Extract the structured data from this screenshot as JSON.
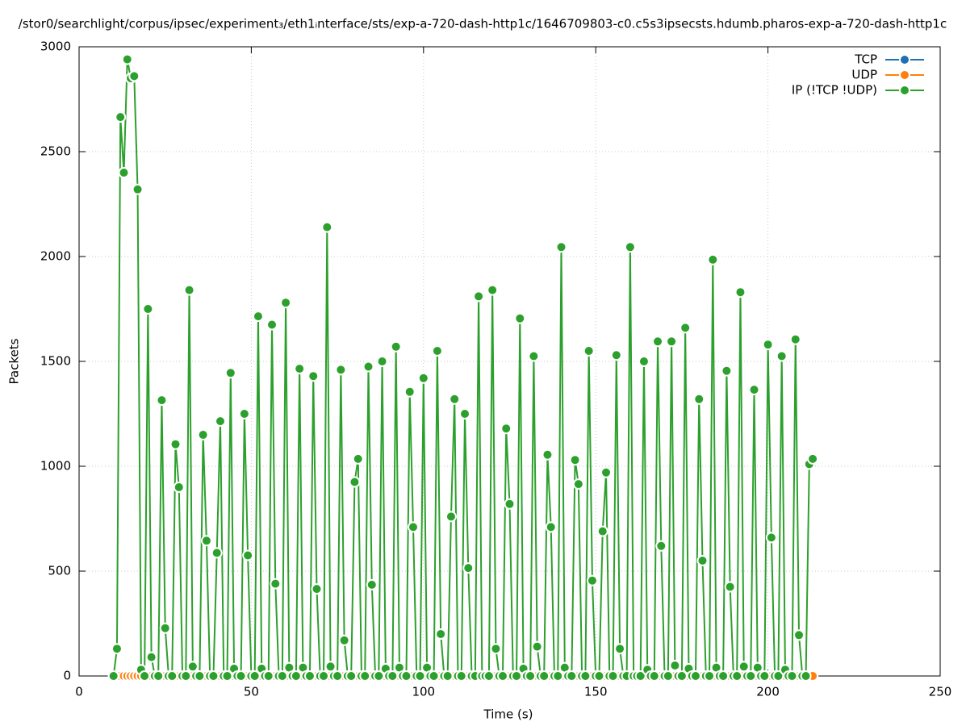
{
  "chart_data": {
    "type": "line",
    "title": "/stor0/searchlight/corpus/ipsec/experiment₃/eth1ᵢnterface/sts/exp-a-720-dash-http1c/1646709803-c0.c5s3ipsecsts.hdumb.pharos-exp-a-720-dash-http1c",
    "x_label": "Time (s)",
    "y_label": "Packets",
    "xlim": [
      0,
      250
    ],
    "xticks": [
      0,
      50,
      100,
      150,
      200,
      250
    ],
    "ylim": [
      0,
      3000
    ],
    "yticks": [
      0,
      500,
      1000,
      1500,
      2000,
      2500,
      3000
    ],
    "grid": true,
    "legend": "top-right",
    "x": [
      10,
      11,
      12,
      13,
      14,
      15,
      16,
      17,
      18,
      19,
      20,
      21,
      22,
      23,
      24,
      25,
      26,
      27,
      28,
      29,
      30,
      31,
      32,
      33,
      34,
      35,
      36,
      37,
      38,
      39,
      40,
      41,
      42,
      43,
      44,
      45,
      46,
      47,
      48,
      49,
      50,
      51,
      52,
      53,
      54,
      55,
      56,
      57,
      58,
      59,
      60,
      61,
      62,
      63,
      64,
      65,
      66,
      67,
      68,
      69,
      70,
      71,
      72,
      73,
      74,
      75,
      76,
      77,
      78,
      79,
      80,
      81,
      82,
      83,
      84,
      85,
      86,
      87,
      88,
      89,
      90,
      91,
      92,
      93,
      94,
      95,
      96,
      97,
      98,
      99,
      100,
      101,
      102,
      103,
      104,
      105,
      106,
      107,
      108,
      109,
      110,
      111,
      112,
      113,
      114,
      115,
      116,
      117,
      118,
      119,
      120,
      121,
      122,
      123,
      124,
      125,
      126,
      127,
      128,
      129,
      130,
      131,
      132,
      133,
      134,
      135,
      136,
      137,
      138,
      139,
      140,
      141,
      142,
      143,
      144,
      145,
      146,
      147,
      148,
      149,
      150,
      151,
      152,
      153,
      154,
      155,
      156,
      157,
      158,
      159,
      160,
      161,
      162,
      163,
      164,
      165,
      166,
      167,
      168,
      169,
      170,
      171,
      172,
      173,
      174,
      175,
      176,
      177,
      178,
      179,
      180,
      181,
      182,
      183,
      184,
      185,
      186,
      187,
      188,
      189,
      190,
      191,
      192,
      193,
      194,
      195,
      196,
      197,
      198,
      199,
      200,
      201,
      202,
      203,
      204,
      205,
      206,
      207,
      208,
      209,
      210,
      211,
      212,
      213
    ],
    "series": [
      {
        "name": "TCP",
        "color": "#1f6fb4",
        "values": [
          0,
          0,
          0,
          0,
          0,
          0,
          0,
          0,
          0,
          0,
          0,
          0,
          0,
          0,
          0,
          0,
          0,
          0,
          0,
          0,
          0,
          0,
          0,
          0,
          0,
          0,
          0,
          0,
          0,
          0,
          0,
          0,
          0,
          0,
          0,
          0,
          0,
          0,
          0,
          0,
          0,
          0,
          0,
          0,
          0,
          0,
          0,
          0,
          0,
          0,
          0,
          0,
          0,
          0,
          0,
          0,
          0,
          0,
          0,
          0,
          0,
          0,
          0,
          0,
          0,
          0,
          0,
          0,
          0,
          0,
          0,
          0,
          0,
          0,
          0,
          0,
          0,
          0,
          0,
          0,
          0,
          0,
          0,
          0,
          0,
          0,
          0,
          0,
          0,
          0,
          0,
          0,
          0,
          0,
          0,
          0,
          0,
          0,
          0,
          0,
          0,
          0,
          0,
          0,
          0,
          0,
          0,
          0,
          0,
          0,
          0,
          0,
          0,
          0,
          0,
          0,
          0,
          0,
          0,
          0,
          0,
          0,
          0,
          0,
          0,
          0,
          0,
          0,
          0,
          0,
          0,
          0,
          0,
          0,
          0,
          0,
          0,
          0,
          0,
          0,
          0,
          0,
          0,
          0,
          0,
          0,
          0,
          0,
          0,
          0,
          0,
          0,
          0,
          0,
          0,
          0,
          0,
          0,
          0,
          0,
          0,
          0,
          0,
          0,
          0,
          0,
          0,
          0,
          0,
          0,
          0,
          0,
          0,
          0,
          0,
          0,
          0,
          0,
          0,
          0,
          0,
          0,
          0,
          0,
          0,
          0,
          0,
          0,
          0,
          0,
          0,
          0,
          0,
          0,
          0,
          0,
          0,
          0,
          0,
          0,
          0,
          0,
          0,
          0
        ]
      },
      {
        "name": "UDP",
        "color": "#ff7f0e",
        "values": [
          0,
          0,
          0,
          0,
          0,
          0,
          0,
          0,
          0,
          0,
          0,
          0,
          0,
          0,
          0,
          0,
          0,
          0,
          0,
          0,
          0,
          0,
          0,
          0,
          0,
          0,
          0,
          0,
          0,
          0,
          0,
          0,
          0,
          0,
          0,
          0,
          0,
          0,
          0,
          0,
          0,
          0,
          0,
          0,
          0,
          0,
          0,
          0,
          0,
          0,
          0,
          0,
          0,
          0,
          0,
          0,
          0,
          0,
          0,
          0,
          0,
          0,
          0,
          0,
          0,
          0,
          0,
          0,
          0,
          0,
          0,
          0,
          0,
          0,
          0,
          0,
          0,
          0,
          0,
          0,
          0,
          0,
          0,
          0,
          0,
          0,
          0,
          0,
          0,
          0,
          0,
          0,
          0,
          0,
          0,
          0,
          0,
          0,
          0,
          0,
          0,
          0,
          0,
          0,
          0,
          0,
          0,
          0,
          0,
          0,
          0,
          0,
          0,
          0,
          0,
          0,
          0,
          0,
          0,
          0,
          0,
          0,
          0,
          0,
          0,
          0,
          0,
          0,
          0,
          0,
          0,
          0,
          0,
          0,
          0,
          0,
          0,
          0,
          0,
          0,
          0,
          0,
          0,
          0,
          0,
          0,
          0,
          0,
          0,
          0,
          0,
          0,
          0,
          0,
          0,
          0,
          0,
          0,
          0,
          0,
          0,
          0,
          0,
          0,
          0,
          0,
          0,
          0,
          0,
          0,
          0,
          0,
          0,
          0,
          0,
          0,
          0,
          0,
          0,
          0,
          0,
          0,
          0,
          0,
          0,
          0,
          0,
          0,
          0,
          0,
          0,
          0,
          0,
          0,
          0,
          0,
          0,
          0,
          0,
          0,
          0,
          0,
          0,
          0
        ]
      },
      {
        "name": "IP (!TCP  !UDP)",
        "color": "#2ca02c",
        "values": [
          0,
          130,
          2665,
          2400,
          2940,
          2850,
          2860,
          2320,
          30,
          0,
          1750,
          90,
          0,
          0,
          1315,
          228,
          0,
          0,
          1105,
          900,
          0,
          0,
          1840,
          45,
          0,
          0,
          1150,
          645,
          0,
          0,
          587,
          1215,
          0,
          0,
          1445,
          35,
          0,
          0,
          1250,
          575,
          0,
          0,
          1715,
          35,
          0,
          0,
          1675,
          440,
          0,
          0,
          1780,
          40,
          0,
          0,
          1465,
          40,
          0,
          0,
          1430,
          415,
          0,
          0,
          2140,
          45,
          0,
          0,
          1460,
          170,
          0,
          0,
          925,
          1035,
          0,
          0,
          1475,
          435,
          0,
          0,
          1500,
          35,
          0,
          0,
          1570,
          40,
          0,
          0,
          1355,
          710,
          0,
          0,
          1420,
          40,
          0,
          0,
          1550,
          200,
          0,
          0,
          760,
          1320,
          0,
          0,
          1250,
          515,
          0,
          0,
          1810,
          0,
          0,
          0,
          1840,
          130,
          0,
          0,
          1180,
          820,
          0,
          0,
          1705,
          35,
          0,
          0,
          1525,
          140,
          0,
          0,
          1055,
          710,
          0,
          0,
          2045,
          40,
          0,
          0,
          1030,
          915,
          0,
          0,
          1550,
          455,
          0,
          0,
          690,
          970,
          0,
          0,
          1530,
          130,
          0,
          0,
          2045,
          0,
          0,
          0,
          1500,
          30,
          0,
          0,
          1595,
          620,
          0,
          0,
          1595,
          50,
          0,
          0,
          1660,
          35,
          0,
          0,
          1320,
          550,
          0,
          0,
          1985,
          40,
          0,
          0,
          1455,
          425,
          0,
          0,
          1830,
          45,
          0,
          0,
          1365,
          40,
          0,
          0,
          1580,
          660,
          0,
          0,
          1525,
          30,
          0,
          0,
          1605,
          195,
          0,
          0,
          1010,
          1035
        ]
      }
    ]
  }
}
